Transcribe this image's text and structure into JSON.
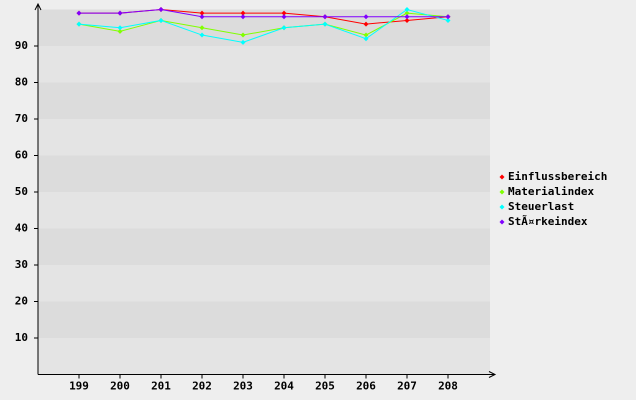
{
  "chart_data": {
    "type": "line",
    "categories": [
      "199",
      "200",
      "201",
      "202",
      "203",
      "204",
      "205",
      "206",
      "207",
      "208"
    ],
    "series": [
      {
        "name": "Einflussbereich",
        "color": "#ff0000",
        "values": [
          99,
          99,
          100,
          99,
          99,
          99,
          98,
          96,
          97,
          98
        ]
      },
      {
        "name": "Materialindex",
        "color": "#80ff00",
        "values": [
          96,
          94,
          97,
          95,
          93,
          95,
          96,
          93,
          99,
          98
        ]
      },
      {
        "name": "Steuerlast",
        "color": "#00ffff",
        "values": [
          96,
          95,
          97,
          93,
          91,
          95,
          96,
          92,
          100,
          97
        ]
      },
      {
        "name": "StÃ¤rkeindex",
        "color": "#8000ff",
        "values": [
          99,
          99,
          100,
          98,
          98,
          98,
          98,
          98,
          98,
          98
        ]
      }
    ],
    "ylim": [
      0,
      100
    ],
    "yticks": [
      10,
      20,
      30,
      40,
      50,
      60,
      70,
      80,
      90
    ],
    "grid": true,
    "legend": "right"
  }
}
